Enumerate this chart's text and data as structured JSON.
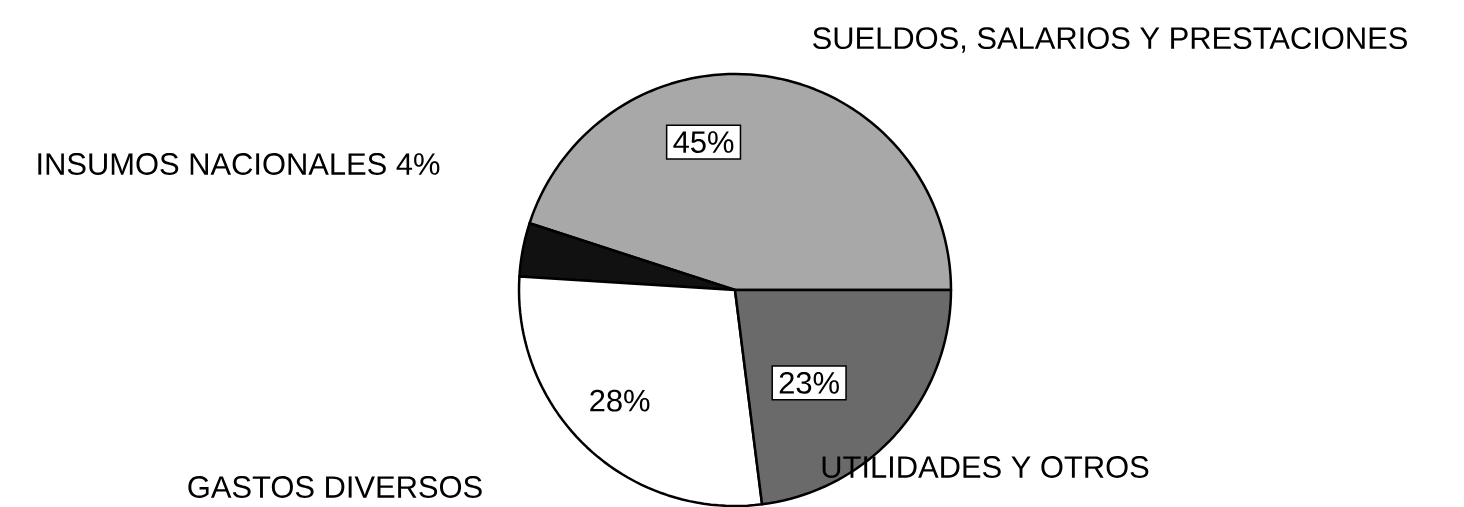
{
  "chart_data": {
    "type": "pie",
    "categories": [
      "SUELDOS, SALARIOS Y PRESTACIONES",
      "INSUMOS NACIONALES 4%",
      "GASTOS DIVERSOS",
      "UTILIDADES Y OTROS"
    ],
    "values": [
      45,
      4,
      28,
      23
    ],
    "colors": [
      "#a8a8a8",
      "#111111",
      "#ffffff",
      "#6a6a6a"
    ],
    "value_labels": [
      "45%",
      null,
      "28%",
      "23%"
    ]
  }
}
